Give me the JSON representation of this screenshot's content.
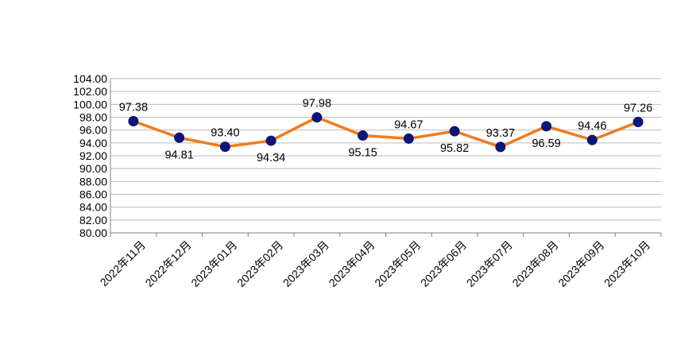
{
  "chart_data": {
    "type": "line",
    "title": "",
    "xlabel": "",
    "ylabel": "",
    "ylim": [
      80,
      104
    ],
    "ytick_step": 2,
    "ytick_decimals": 2,
    "grid": true,
    "legend": "none",
    "categories": [
      "2022年11月",
      "2022年12月",
      "2023年01月",
      "2023年02月",
      "2023年03月",
      "2023年04月",
      "2023年05月",
      "2023年06月",
      "2023年07月",
      "2023年08月",
      "2023年09月",
      "2023年10月"
    ],
    "series": [
      {
        "values": [
          97.38,
          94.81,
          93.4,
          94.34,
          97.98,
          95.15,
          94.67,
          95.82,
          93.37,
          96.59,
          94.46,
          97.26
        ],
        "labels": [
          "97.38",
          "94.81",
          "93.40",
          "94.34",
          "97.98",
          "95.15",
          "94.67",
          "95.82",
          "93.37",
          "96.59",
          "94.46",
          "97.26"
        ],
        "label_positions": [
          "above",
          "below",
          "above",
          "below",
          "above",
          "below",
          "above",
          "below",
          "above",
          "below",
          "above",
          "above"
        ],
        "line_color": "#f07b1f",
        "marker_color": "#0b1678"
      }
    ]
  }
}
